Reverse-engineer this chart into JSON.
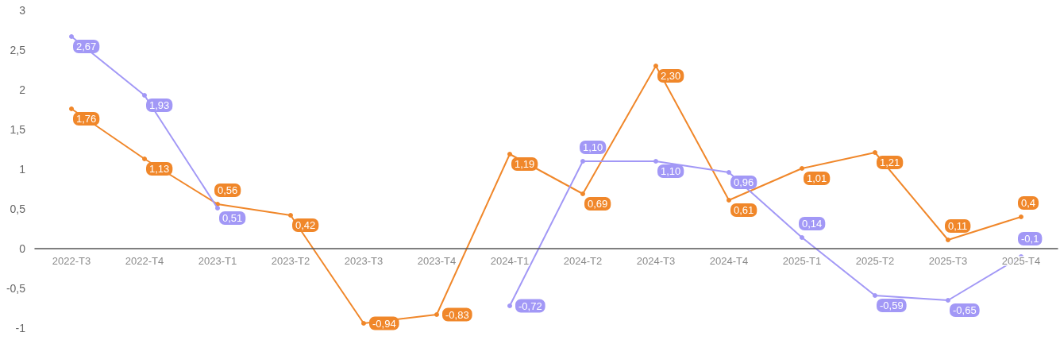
{
  "chart_data": {
    "type": "line",
    "categories": [
      "2022-T3",
      "2022-T4",
      "2023-T1",
      "2023-T2",
      "2023-T3",
      "2023-T4",
      "2024-T1",
      "2024-T2",
      "2024-T3",
      "2024-T4",
      "2025-T1",
      "2025-T2",
      "2025-T3",
      "2025-T4"
    ],
    "series": [
      {
        "color": "#f0872a",
        "values": [
          1.76,
          1.13,
          0.56,
          0.42,
          -0.94,
          -0.83,
          1.19,
          0.69,
          2.3,
          0.61,
          1.01,
          1.21,
          0.11,
          0.4
        ],
        "value_labels": [
          "1,76",
          "1,13",
          "0,56",
          "0,42",
          "-0,94",
          "-0,83",
          "1,19",
          "0,69",
          "2,30",
          "0,61",
          "1,01",
          "1,21",
          "0,11",
          "0,4"
        ]
      },
      {
        "color": "#a298f6",
        "values": [
          2.67,
          1.93,
          0.51,
          null,
          null,
          null,
          -0.72,
          1.1,
          1.1,
          0.96,
          0.14,
          -0.59,
          -0.65,
          -0.1
        ],
        "value_labels": [
          "2,67",
          "1,93",
          "0,51",
          null,
          null,
          null,
          "-0,72",
          "1,10",
          "1,10",
          "0,96",
          "0,14",
          "-0,59",
          "-0,65",
          "-0,1"
        ]
      }
    ],
    "ylim": [
      -1,
      3
    ],
    "yticks": [
      {
        "value": -1,
        "label": "-1"
      },
      {
        "value": -0.5,
        "label": "-0,5"
      },
      0,
      {
        "value": 0.5,
        "label": "0,5"
      },
      1,
      {
        "value": 1.5,
        "label": "1,5"
      },
      2,
      {
        "value": 2.5,
        "label": "2,5"
      },
      3
    ],
    "grid": false,
    "marker": "circle",
    "line_style": "solid"
  }
}
